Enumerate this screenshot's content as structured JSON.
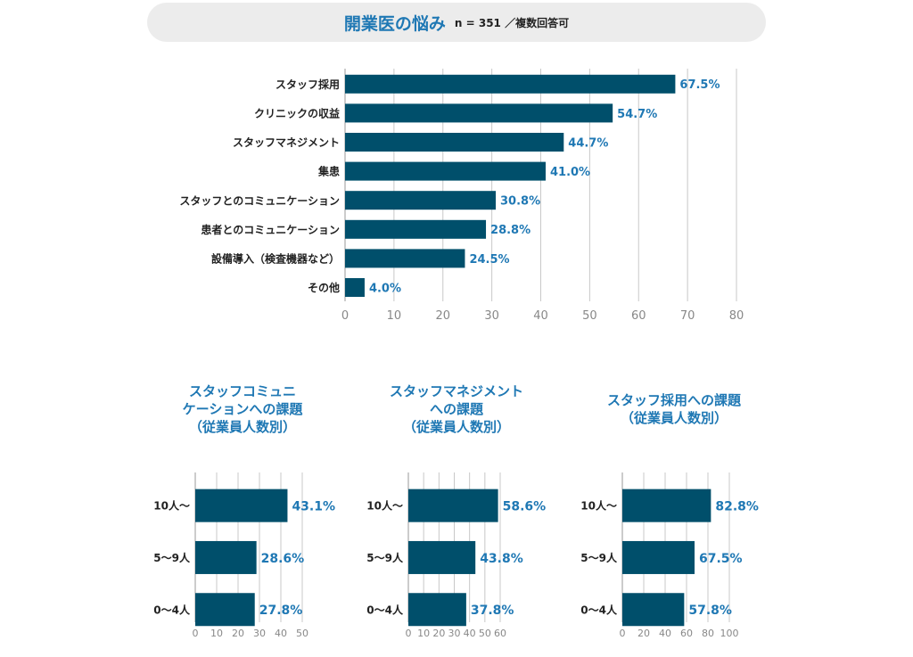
{
  "header": {
    "title": "開業医の悩み",
    "note": "n = 351 ／複数回答可"
  },
  "colors": {
    "bar": "#004f6b",
    "label": "#1f78b4",
    "grid": "#c8c8c8",
    "banner": "#ececec"
  },
  "chart_data": [
    {
      "type": "bar",
      "orientation": "horizontal",
      "title": "",
      "categories": [
        "スタッフ採用",
        "クリニックの収益",
        "スタッフマネジメント",
        "集患",
        "スタッフとのコミュニケーション",
        "患者とのコミュニケーション",
        "設備導入（検査機器など）",
        "その他"
      ],
      "values": [
        67.5,
        54.7,
        44.7,
        41.0,
        30.8,
        28.8,
        24.5,
        4.0
      ],
      "value_labels": [
        "67.5%",
        "54.7%",
        "44.7%",
        "41.0%",
        "30.8%",
        "28.8%",
        "24.5%",
        "4.0%"
      ],
      "xlim": [
        0,
        80
      ],
      "ticks": [
        0,
        10,
        20,
        30,
        40,
        50,
        60,
        70,
        80
      ],
      "grid": true
    },
    {
      "type": "bar",
      "orientation": "horizontal",
      "title_lines": [
        "スタッフコミュニ",
        "ケーションへの課題",
        "（従業員人数別）"
      ],
      "categories": [
        "10人～",
        "5～9人",
        "0～4人"
      ],
      "values": [
        43.1,
        28.6,
        27.8
      ],
      "value_labels": [
        "43.1%",
        "28.6%",
        "27.8%"
      ],
      "xlim": [
        0,
        50
      ],
      "ticks": [
        0,
        10,
        20,
        30,
        40,
        50
      ],
      "grid": true
    },
    {
      "type": "bar",
      "orientation": "horizontal",
      "title_lines": [
        "スタッフマネジメント",
        "への課題",
        "（従業員人数別）"
      ],
      "categories": [
        "10人～",
        "5～9人",
        "0～4人"
      ],
      "values": [
        58.6,
        43.8,
        37.8
      ],
      "value_labels": [
        "58.6%",
        "43.8%",
        "37.8%"
      ],
      "xlim": [
        0,
        60
      ],
      "ticks": [
        0,
        10,
        20,
        30,
        40,
        50,
        60
      ],
      "grid": true
    },
    {
      "type": "bar",
      "orientation": "horizontal",
      "title_lines": [
        "スタッフ採用への課題",
        "（従業員人数別）"
      ],
      "categories": [
        "10人～",
        "5～9人",
        "0～4人"
      ],
      "values": [
        82.8,
        67.5,
        57.8
      ],
      "value_labels": [
        "82.8%",
        "67.5%",
        "57.8%"
      ],
      "xlim": [
        0,
        100
      ],
      "ticks": [
        0,
        20,
        40,
        60,
        80,
        100
      ],
      "grid": true
    }
  ]
}
